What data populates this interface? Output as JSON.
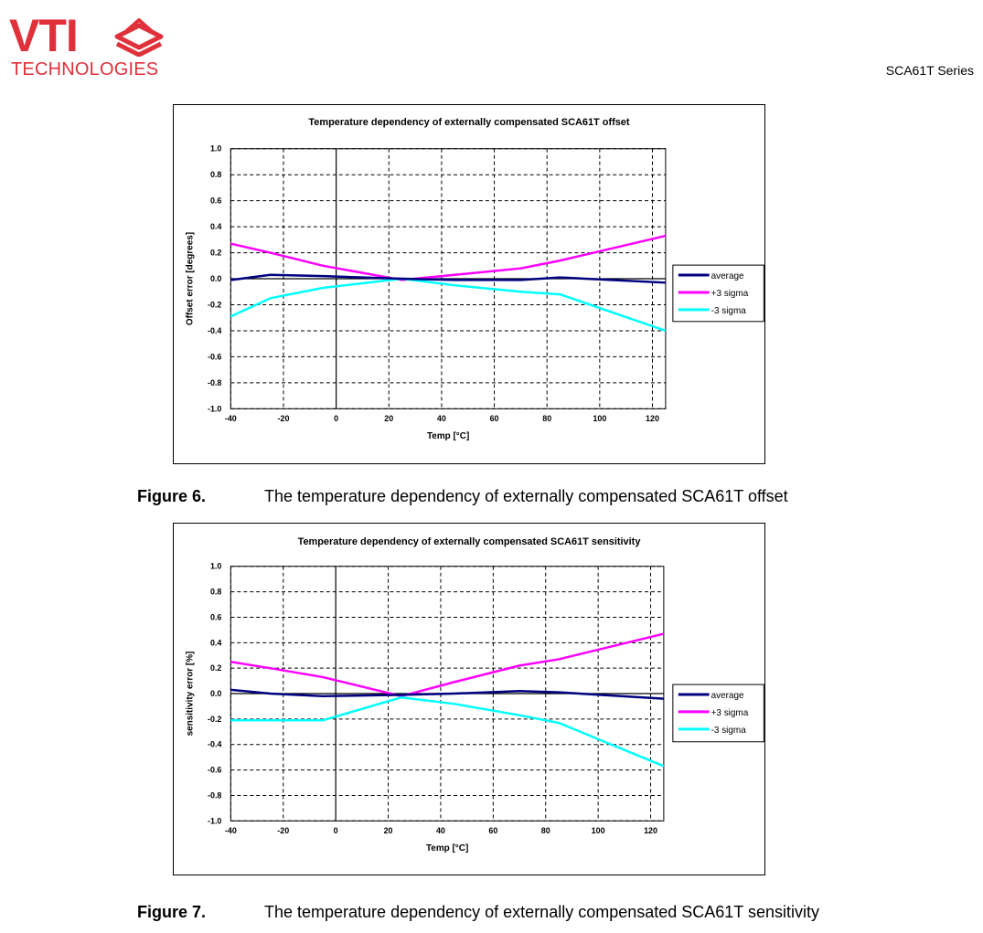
{
  "header": {
    "logo_text": "VTI",
    "logo_subtext": "TECHNOLOGIES",
    "series": "SCA61T Series",
    "brand_color": "#e0313b"
  },
  "figures": [
    {
      "label": "Figure 6.",
      "caption": "The temperature dependency of externally compensated SCA61T offset"
    },
    {
      "label": "Figure 7.",
      "caption": "The temperature dependency of externally compensated SCA61T sensitivity"
    }
  ],
  "chart_data": [
    {
      "type": "line",
      "title": "Temperature dependency of externally compensated SCA61T offset",
      "xlabel": "Temp [°C]",
      "ylabel": "Offset error [degrees]",
      "xlim": [
        -40,
        125
      ],
      "ylim": [
        -1.0,
        1.0
      ],
      "x_ticks": [
        -40,
        -20,
        0,
        20,
        40,
        60,
        80,
        100,
        120
      ],
      "x_tick_labels": [
        "-40",
        "-20",
        "0",
        "20",
        "40",
        "60",
        "80",
        "100",
        "120"
      ],
      "y_ticks": [
        -1.0,
        -0.8,
        -0.6,
        -0.4,
        -0.2,
        0.0,
        0.2,
        0.4,
        0.6,
        0.8,
        1.0
      ],
      "y_tick_labels": [
        "-1.0",
        "-0.8",
        "-0.6",
        "-0.4",
        "-0.2",
        "0.0",
        "0.2",
        "0.4",
        "0.6",
        "0.8",
        "1.0"
      ],
      "grid": true,
      "legend_position": "right",
      "series": [
        {
          "name": "average",
          "color": "#000080",
          "x": [
            -40,
            -25,
            -5,
            25,
            45,
            70,
            85,
            125
          ],
          "y": [
            -0.01,
            0.03,
            0.02,
            0.0,
            -0.01,
            -0.01,
            0.01,
            -0.03
          ]
        },
        {
          "name": "+3 sigma",
          "color": "#ff00ff",
          "x": [
            -40,
            -25,
            -5,
            25,
            45,
            70,
            85,
            125
          ],
          "y": [
            0.27,
            0.2,
            0.1,
            -0.01,
            0.03,
            0.08,
            0.14,
            0.33
          ]
        },
        {
          "name": "-3 sigma",
          "color": "#00ffff",
          "x": [
            -40,
            -25,
            -5,
            25,
            45,
            70,
            85,
            125
          ],
          "y": [
            -0.29,
            -0.15,
            -0.07,
            0.0,
            -0.05,
            -0.1,
            -0.12,
            -0.4
          ]
        }
      ]
    },
    {
      "type": "line",
      "title": "Temperature dependency of externally compensated SCA61T sensitivity",
      "xlabel": "Temp [°C]",
      "ylabel": "sensitivity error [%]",
      "xlim": [
        -40,
        125
      ],
      "ylim": [
        -1.0,
        1.0
      ],
      "x_ticks": [
        -40,
        -20,
        0,
        20,
        40,
        60,
        80,
        100,
        120
      ],
      "x_tick_labels": [
        "-40",
        "-20",
        "0",
        "20",
        "40",
        "60",
        "80",
        "100",
        "120"
      ],
      "y_ticks": [
        -1.0,
        -0.8,
        -0.6,
        -0.4,
        -0.2,
        0.0,
        0.2,
        0.4,
        0.6,
        0.8,
        1.0
      ],
      "y_tick_labels": [
        "-1.0",
        "-0.8",
        "-0.6",
        "-0.4",
        "-0.2",
        "0.0",
        "0.2",
        "0.4",
        "0.6",
        "0.8",
        "1.0"
      ],
      "grid": true,
      "legend_position": "right",
      "series": [
        {
          "name": "average",
          "color": "#000080",
          "x": [
            -40,
            -25,
            -5,
            25,
            45,
            70,
            85,
            125
          ],
          "y": [
            0.03,
            0.0,
            -0.02,
            -0.01,
            0.0,
            0.02,
            0.01,
            -0.04
          ]
        },
        {
          "name": "+3 sigma",
          "color": "#ff00ff",
          "x": [
            -40,
            -25,
            -5,
            25,
            45,
            70,
            85,
            125
          ],
          "y": [
            0.25,
            0.2,
            0.13,
            -0.02,
            0.09,
            0.22,
            0.27,
            0.47
          ]
        },
        {
          "name": "-3 sigma",
          "color": "#00ffff",
          "x": [
            -40,
            -25,
            -5,
            25,
            45,
            70,
            85,
            125
          ],
          "y": [
            -0.21,
            -0.21,
            -0.21,
            -0.03,
            -0.08,
            -0.17,
            -0.23,
            -0.57
          ]
        }
      ]
    }
  ]
}
